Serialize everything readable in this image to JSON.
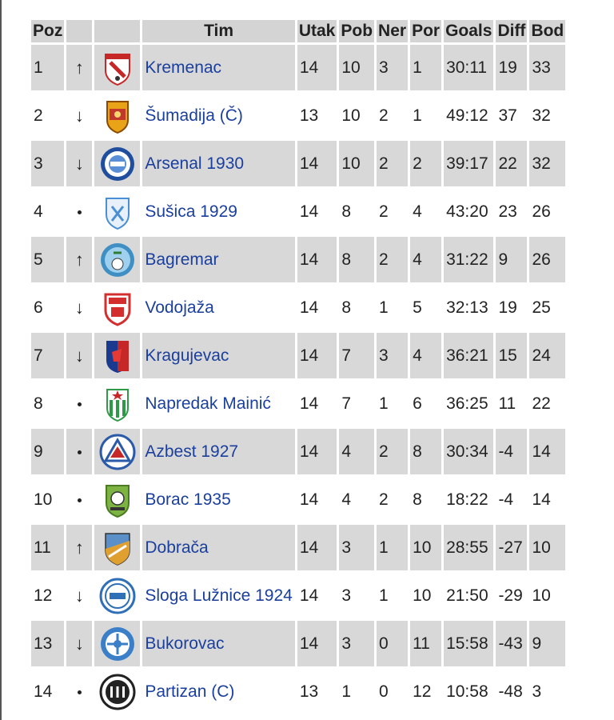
{
  "table": {
    "headers": {
      "pos": "Poz",
      "trend": "",
      "logo": "",
      "team": "Tim",
      "played": "Utak",
      "won": "Pob",
      "drawn": "Ner",
      "lost": "Por",
      "goals": "Goals",
      "diff": "Diff",
      "points": "Bod"
    },
    "rows": [
      {
        "pos": "1",
        "trend": "↑",
        "trend_icon": "arrow-up-icon",
        "team": "Kremenac",
        "logo_icon": "kremenac-crest-icon",
        "logo_color": "#c62828",
        "played": "14",
        "won": "10",
        "drawn": "3",
        "lost": "1",
        "goals": "30:11",
        "diff": "19",
        "points": "33"
      },
      {
        "pos": "2",
        "trend": "↓",
        "trend_icon": "arrow-down-icon",
        "team": "Šumadija (Č)",
        "logo_icon": "sumadija-crest-icon",
        "logo_color": "#e8a317",
        "played": "13",
        "won": "10",
        "drawn": "2",
        "lost": "1",
        "goals": "49:12",
        "diff": "37",
        "points": "32"
      },
      {
        "pos": "3",
        "trend": "↓",
        "trend_icon": "arrow-down-icon",
        "team": "Arsenal 1930",
        "logo_icon": "arsenal-crest-icon",
        "logo_color": "#1f4e9e",
        "played": "14",
        "won": "10",
        "drawn": "2",
        "lost": "2",
        "goals": "39:17",
        "diff": "22",
        "points": "32"
      },
      {
        "pos": "4",
        "trend": "•",
        "trend_icon": "dot-icon",
        "team": "Sušica 1929",
        "logo_icon": "susica-crest-icon",
        "logo_color": "#4a8fd4",
        "played": "14",
        "won": "8",
        "drawn": "2",
        "lost": "4",
        "goals": "43:20",
        "diff": "23",
        "points": "26"
      },
      {
        "pos": "5",
        "trend": "↑",
        "trend_icon": "arrow-up-icon",
        "team": "Bagremar",
        "logo_icon": "bagremar-crest-icon",
        "logo_color": "#3f8fc4",
        "played": "14",
        "won": "8",
        "drawn": "2",
        "lost": "4",
        "goals": "31:22",
        "diff": "9",
        "points": "26"
      },
      {
        "pos": "6",
        "trend": "↓",
        "trend_icon": "arrow-down-icon",
        "team": "Vodojaža",
        "logo_icon": "vodojaza-crest-icon",
        "logo_color": "#d32f2f",
        "played": "14",
        "won": "8",
        "drawn": "1",
        "lost": "5",
        "goals": "32:13",
        "diff": "19",
        "points": "25"
      },
      {
        "pos": "7",
        "trend": "↓",
        "trend_icon": "arrow-down-icon",
        "team": "Kragujevac",
        "logo_icon": "kragujevac-crest-icon",
        "logo_color": "#1a3a8f",
        "played": "14",
        "won": "7",
        "drawn": "3",
        "lost": "4",
        "goals": "36:21",
        "diff": "15",
        "points": "24"
      },
      {
        "pos": "8",
        "trend": "•",
        "trend_icon": "dot-icon",
        "team": "Napredak Mainić",
        "logo_icon": "napredak-crest-icon",
        "logo_color": "#2e9a48",
        "played": "14",
        "won": "7",
        "drawn": "1",
        "lost": "6",
        "goals": "36:25",
        "diff": "11",
        "points": "22"
      },
      {
        "pos": "9",
        "trend": "•",
        "trend_icon": "dot-icon",
        "team": "Azbest 1927",
        "logo_icon": "azbest-crest-icon",
        "logo_color": "#2a5aa8",
        "played": "14",
        "won": "4",
        "drawn": "2",
        "lost": "8",
        "goals": "30:34",
        "diff": "-4",
        "points": "14"
      },
      {
        "pos": "10",
        "trend": "•",
        "trend_icon": "dot-icon",
        "team": "Borac 1935",
        "logo_icon": "borac-crest-icon",
        "logo_color": "#7cb342",
        "played": "14",
        "won": "4",
        "drawn": "2",
        "lost": "8",
        "goals": "18:22",
        "diff": "-4",
        "points": "14"
      },
      {
        "pos": "11",
        "trend": "↑",
        "trend_icon": "arrow-up-icon",
        "team": "Dobrača",
        "logo_icon": "dobraca-crest-icon",
        "logo_color": "#e0a030",
        "played": "14",
        "won": "3",
        "drawn": "1",
        "lost": "10",
        "goals": "28:55",
        "diff": "-27",
        "points": "10"
      },
      {
        "pos": "12",
        "trend": "↓",
        "trend_icon": "arrow-down-icon",
        "team": "Sloga Lužnice 1924",
        "logo_icon": "sloga-crest-icon",
        "logo_color": "#2f6fb8",
        "played": "14",
        "won": "3",
        "drawn": "1",
        "lost": "10",
        "goals": "21:50",
        "diff": "-29",
        "points": "10"
      },
      {
        "pos": "13",
        "trend": "↓",
        "trend_icon": "arrow-down-icon",
        "team": "Bukorovac",
        "logo_icon": "bukorovac-crest-icon",
        "logo_color": "#3a7fc8",
        "played": "14",
        "won": "3",
        "drawn": "0",
        "lost": "11",
        "goals": "15:58",
        "diff": "-43",
        "points": "9"
      },
      {
        "pos": "14",
        "trend": "•",
        "trend_icon": "dot-icon",
        "team": "Partizan (C)",
        "logo_icon": "partizan-crest-icon",
        "logo_color": "#222222",
        "played": "13",
        "won": "1",
        "drawn": "0",
        "lost": "12",
        "goals": "10:58",
        "diff": "-48",
        "points": "3"
      }
    ]
  },
  "colors": {
    "header_bg": "#d4d4d4",
    "shade_bg": "#d8d8d8",
    "link": "#1a3f9e"
  }
}
